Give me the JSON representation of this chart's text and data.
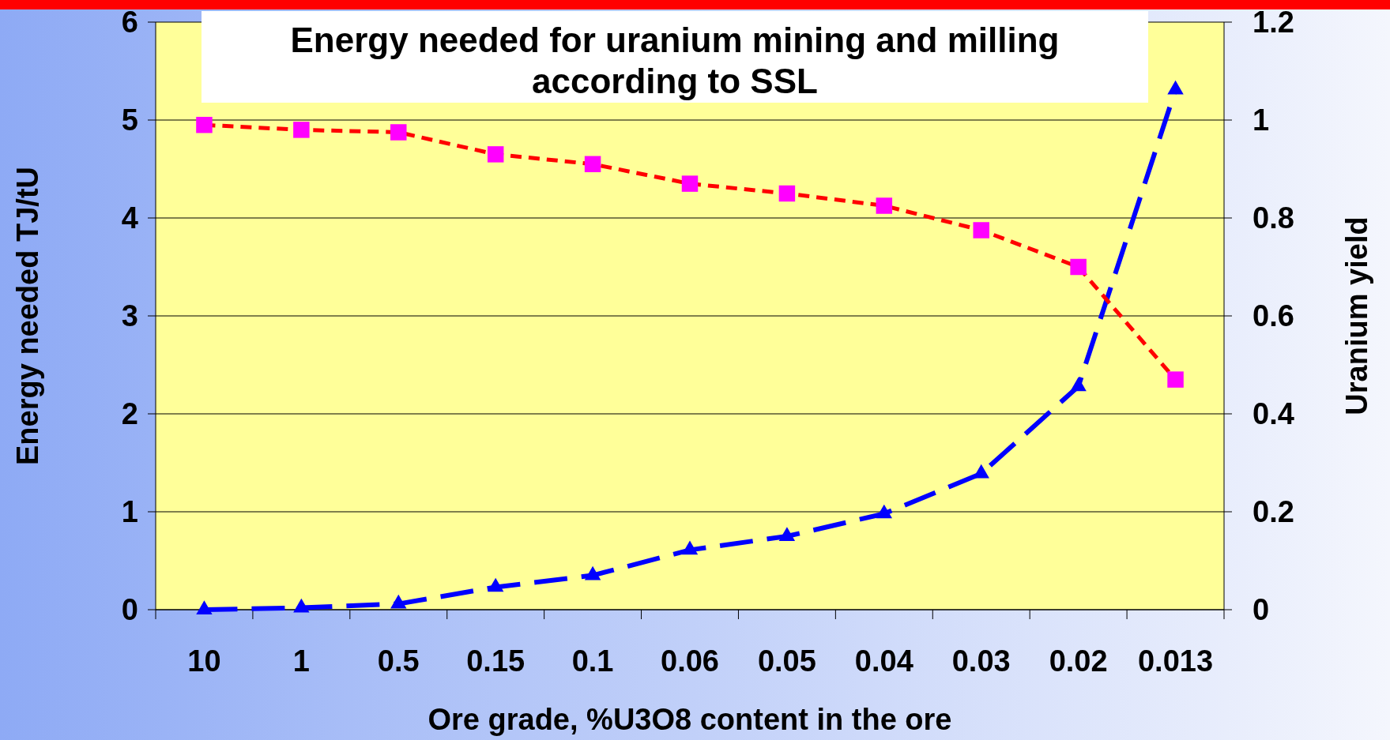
{
  "chart_data": {
    "type": "line",
    "title": "Energy needed for uranium mining and milling according to SSL",
    "xlabel": "Ore grade, %U3O8 content in the ore",
    "ylabel": "Energy needed TJ/tU",
    "y2label": "Uranium yield",
    "categories": [
      "10",
      "1",
      "0.5",
      "0.15",
      "0.1",
      "0.06",
      "0.05",
      "0.04",
      "0.03",
      "0.02",
      "0.013"
    ],
    "series": [
      {
        "color": "#0000ff",
        "marker": "triangle",
        "line_style": "dashed",
        "values": [
          0,
          0.02,
          0.06,
          0.23,
          0.35,
          0.61,
          0.75,
          0.98,
          1.39,
          2.28,
          5.31
        ]
      },
      {
        "color": "#ff00ff",
        "marker": "square",
        "line_style": "dashed",
        "axis": "y2",
        "values": [
          0.99,
          0.98,
          0.975,
          0.93,
          0.91,
          0.87,
          0.85,
          0.825,
          0.775,
          0.7,
          0.47
        ]
      }
    ],
    "ylim": [
      0,
      6
    ],
    "yticks": [
      0,
      1,
      2,
      3,
      4,
      5,
      6
    ],
    "y2lim": [
      0,
      1.2
    ],
    "y2ticks": [
      0,
      {
        "value": 0.2,
        "label": "0.2"
      },
      {
        "value": 0.4,
        "label": "0.4"
      },
      {
        "value": 0.6,
        "label": "0.6"
      },
      {
        "value": 0.8,
        "label": "0.8"
      },
      1,
      {
        "value": 1.2,
        "label": "1.2"
      }
    ],
    "grid": "y"
  }
}
